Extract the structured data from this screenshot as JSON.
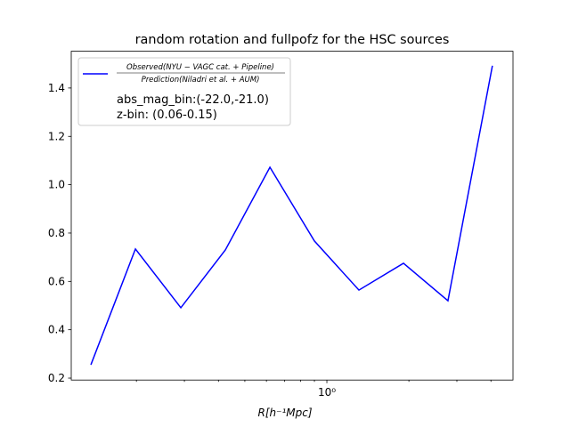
{
  "chart_data": {
    "type": "line",
    "title": "random rotation and fullpofz for the HSC sources",
    "xlabel": "R[h⁻¹Mpc]",
    "xscale": "log",
    "x": [
      0.1361,
      0.1983,
      0.2911,
      0.424,
      0.618,
      0.9,
      1.311,
      1.91,
      2.782,
      4.05
    ],
    "series": [
      {
        "name": {
          "numerator": "Observed(NYU − VAGC cat. + Pipeline)",
          "denominator": "Prediction(Niladri et al. + AUM)"
        },
        "color": "#0000ff",
        "values": [
          0.255,
          0.734,
          0.491,
          0.73,
          1.072,
          0.767,
          0.564,
          0.675,
          0.52,
          1.492
        ]
      }
    ],
    "legend_notes": [
      "abs_mag_bin:(-22.0,-21.0)",
      "z-bin: (0.06-0.15)"
    ],
    "legend_position": "upper left",
    "xlim": [
      0.1153,
      4.82
    ],
    "ylim": [
      0.192,
      1.552
    ],
    "xticks": [
      {
        "value": 1,
        "label": "10⁰"
      }
    ],
    "x_minor_ticks": [
      0.2,
      0.3,
      0.4,
      0.5,
      0.6,
      0.7,
      0.8,
      0.9,
      2,
      3,
      4
    ],
    "yticks": [
      0.2,
      0.4,
      0.6,
      0.8,
      {
        "value": 1.0,
        "label": "1.0"
      },
      1.2,
      1.4
    ]
  }
}
